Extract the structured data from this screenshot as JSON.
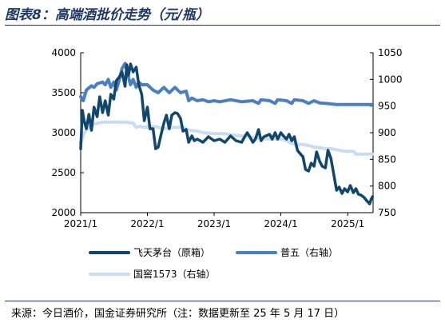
{
  "title": "图表8：高端酒批价走势（元/瓶）",
  "source": "来源：今日酒价，国金证券研究所（注：数据更新至 25 年 5 月 17 日）",
  "chart_data": {
    "type": "line",
    "title": "图表8：高端酒批价走势（元/瓶）",
    "x_ticks": [
      "2021/1",
      "2022/1",
      "2023/1",
      "2024/1",
      "2025/1"
    ],
    "x_range": [
      "2021-01",
      "2025-05"
    ],
    "y_left": {
      "min": 2000,
      "max": 4000,
      "ticks": [
        "2000",
        "2500",
        "3000",
        "3500",
        "4000"
      ]
    },
    "y_right": {
      "min": 750,
      "max": 1050,
      "ticks": [
        "750",
        "800",
        "850",
        "900",
        "950",
        "1000",
        "1050"
      ]
    },
    "legend_position": "bottom",
    "series": [
      {
        "name": "飞天茅台（原箱）",
        "axis": "left",
        "color": "#10476b",
        "points": [
          [
            "2021-01-01",
            2800
          ],
          [
            "2021-01-10",
            3280
          ],
          [
            "2021-01-20",
            3150
          ],
          [
            "2021-02-01",
            3050
          ],
          [
            "2021-02-15",
            3230
          ],
          [
            "2021-03-01",
            3030
          ],
          [
            "2021-03-15",
            3320
          ],
          [
            "2021-04-01",
            3200
          ],
          [
            "2021-04-15",
            3450
          ],
          [
            "2021-05-01",
            3250
          ],
          [
            "2021-05-15",
            3400
          ],
          [
            "2021-06-01",
            3220
          ],
          [
            "2021-06-15",
            3480
          ],
          [
            "2021-07-01",
            3420
          ],
          [
            "2021-07-15",
            3650
          ],
          [
            "2021-08-01",
            3700
          ],
          [
            "2021-08-15",
            3760
          ],
          [
            "2021-09-01",
            3580
          ],
          [
            "2021-09-10",
            3850
          ],
          [
            "2021-09-20",
            3720
          ],
          [
            "2021-10-01",
            3860
          ],
          [
            "2021-10-15",
            3760
          ],
          [
            "2021-11-01",
            3820
          ],
          [
            "2021-11-15",
            3600
          ],
          [
            "2021-12-01",
            3480
          ],
          [
            "2021-12-15",
            3150
          ],
          [
            "2022-01-01",
            3320
          ],
          [
            "2022-01-15",
            3050
          ],
          [
            "2022-02-01",
            3050
          ],
          [
            "2022-02-15",
            2800
          ],
          [
            "2022-03-01",
            2820
          ],
          [
            "2022-03-15",
            2960
          ],
          [
            "2022-04-01",
            3120
          ],
          [
            "2022-04-15",
            3220
          ],
          [
            "2022-05-01",
            3050
          ],
          [
            "2022-05-15",
            3220
          ],
          [
            "2022-06-01",
            3250
          ],
          [
            "2022-06-15",
            3240
          ],
          [
            "2022-07-01",
            3180
          ],
          [
            "2022-07-15",
            3020
          ],
          [
            "2022-08-01",
            3040
          ],
          [
            "2022-08-15",
            2880
          ],
          [
            "2022-09-01",
            2960
          ],
          [
            "2022-09-15",
            2900
          ],
          [
            "2022-10-01",
            2920
          ],
          [
            "2022-11-01",
            2880
          ],
          [
            "2022-12-01",
            2950
          ],
          [
            "2023-01-01",
            2900
          ],
          [
            "2023-02-01",
            2920
          ],
          [
            "2023-03-01",
            2880
          ],
          [
            "2023-04-01",
            2960
          ],
          [
            "2023-05-01",
            2900
          ],
          [
            "2023-06-01",
            2880
          ],
          [
            "2023-06-15",
            2940
          ],
          [
            "2023-07-01",
            3000
          ],
          [
            "2023-07-15",
            2950
          ],
          [
            "2023-08-01",
            2880
          ],
          [
            "2023-08-15",
            2920
          ],
          [
            "2023-09-01",
            3040
          ],
          [
            "2023-09-15",
            2900
          ],
          [
            "2023-10-01",
            2950
          ],
          [
            "2023-11-01",
            2980
          ],
          [
            "2023-11-15",
            2920
          ],
          [
            "2023-12-01",
            3000
          ],
          [
            "2023-12-15",
            2920
          ],
          [
            "2024-01-01",
            3000
          ],
          [
            "2024-01-15",
            2960
          ],
          [
            "2024-02-01",
            2920
          ],
          [
            "2024-02-15",
            2980
          ],
          [
            "2024-03-01",
            2900
          ],
          [
            "2024-03-15",
            2950
          ],
          [
            "2024-04-01",
            2780
          ],
          [
            "2024-04-15",
            2740
          ],
          [
            "2024-05-01",
            2700
          ],
          [
            "2024-05-15",
            2540
          ],
          [
            "2024-06-01",
            2520
          ],
          [
            "2024-06-15",
            2620
          ],
          [
            "2024-07-01",
            2580
          ],
          [
            "2024-07-15",
            2760
          ],
          [
            "2024-08-01",
            2640
          ],
          [
            "2024-08-15",
            2580
          ],
          [
            "2024-09-01",
            2560
          ],
          [
            "2024-09-15",
            2780
          ],
          [
            "2024-10-01",
            2680
          ],
          [
            "2024-10-15",
            2500
          ],
          [
            "2024-11-01",
            2280
          ],
          [
            "2024-11-15",
            2320
          ],
          [
            "2024-12-01",
            2240
          ],
          [
            "2024-12-15",
            2300
          ],
          [
            "2025-01-01",
            2260
          ],
          [
            "2025-01-15",
            2340
          ],
          [
            "2025-02-01",
            2250
          ],
          [
            "2025-02-15",
            2300
          ],
          [
            "2025-03-01",
            2230
          ],
          [
            "2025-03-15",
            2220
          ],
          [
            "2025-04-01",
            2190
          ],
          [
            "2025-04-15",
            2150
          ],
          [
            "2025-05-01",
            2110
          ],
          [
            "2025-05-10",
            2170
          ],
          [
            "2025-05-17",
            2200
          ]
        ]
      },
      {
        "name": "普五（右轴）",
        "axis": "right",
        "color": "#4a80bf",
        "points": [
          [
            "2021-01-01",
            968
          ],
          [
            "2021-01-15",
            960
          ],
          [
            "2021-02-01",
            980
          ],
          [
            "2021-03-01",
            988
          ],
          [
            "2021-03-15",
            985
          ],
          [
            "2021-04-01",
            992
          ],
          [
            "2021-05-01",
            995
          ],
          [
            "2021-05-15",
            990
          ],
          [
            "2021-06-01",
            1000
          ],
          [
            "2021-06-15",
            985
          ],
          [
            "2021-07-01",
            995
          ],
          [
            "2021-07-15",
            980
          ],
          [
            "2021-08-01",
            1000
          ],
          [
            "2021-08-15",
            1020
          ],
          [
            "2021-09-01",
            1030
          ],
          [
            "2021-09-15",
            1010
          ],
          [
            "2021-10-01",
            990
          ],
          [
            "2021-10-15",
            1000
          ],
          [
            "2021-11-01",
            985
          ],
          [
            "2021-11-15",
            995
          ],
          [
            "2021-12-01",
            990
          ],
          [
            "2022-01-01",
            990
          ],
          [
            "2022-02-01",
            980
          ],
          [
            "2022-03-01",
            975
          ],
          [
            "2022-04-01",
            985
          ],
          [
            "2022-05-01",
            975
          ],
          [
            "2022-06-01",
            985
          ],
          [
            "2022-07-01",
            975
          ],
          [
            "2022-08-01",
            978
          ],
          [
            "2022-08-15",
            960
          ],
          [
            "2022-09-01",
            965
          ],
          [
            "2022-10-01",
            960
          ],
          [
            "2022-11-01",
            962
          ],
          [
            "2022-12-01",
            958
          ],
          [
            "2023-01-01",
            960
          ],
          [
            "2023-02-01",
            958
          ],
          [
            "2023-04-01",
            962
          ],
          [
            "2023-06-01",
            958
          ],
          [
            "2023-08-01",
            960
          ],
          [
            "2023-09-01",
            955
          ],
          [
            "2023-09-15",
            962
          ],
          [
            "2023-11-01",
            960
          ],
          [
            "2023-12-01",
            955
          ],
          [
            "2023-12-15",
            962
          ],
          [
            "2024-02-01",
            960
          ],
          [
            "2024-03-01",
            955
          ],
          [
            "2024-03-15",
            962
          ],
          [
            "2024-05-01",
            960
          ],
          [
            "2024-06-01",
            955
          ],
          [
            "2024-07-01",
            960
          ],
          [
            "2024-08-01",
            956
          ],
          [
            "2024-09-01",
            955
          ],
          [
            "2024-11-01",
            953
          ],
          [
            "2025-01-01",
            953
          ],
          [
            "2025-03-01",
            953
          ],
          [
            "2025-05-17",
            953
          ]
        ]
      },
      {
        "name": "国窖1573（右轴）",
        "axis": "right",
        "color": "#c9dcf0",
        "points": [
          [
            "2021-01-01",
            880
          ],
          [
            "2021-01-20",
            900
          ],
          [
            "2021-03-01",
            915
          ],
          [
            "2021-05-01",
            920
          ],
          [
            "2021-07-01",
            920
          ],
          [
            "2021-09-01",
            920
          ],
          [
            "2021-10-15",
            918
          ],
          [
            "2021-11-01",
            910
          ],
          [
            "2021-11-20",
            912
          ],
          [
            "2021-12-15",
            910
          ],
          [
            "2022-02-01",
            912
          ],
          [
            "2022-04-01",
            908
          ],
          [
            "2022-06-01",
            910
          ],
          [
            "2022-07-15",
            910
          ],
          [
            "2022-08-15",
            905
          ],
          [
            "2022-10-01",
            903
          ],
          [
            "2022-11-01",
            900
          ],
          [
            "2023-01-01",
            898
          ],
          [
            "2023-03-01",
            898
          ],
          [
            "2023-05-01",
            895
          ],
          [
            "2023-07-01",
            893
          ],
          [
            "2023-09-01",
            890
          ],
          [
            "2023-11-01",
            888
          ],
          [
            "2024-01-01",
            888
          ],
          [
            "2024-02-01",
            885
          ],
          [
            "2024-03-01",
            880
          ],
          [
            "2024-04-01",
            878
          ],
          [
            "2024-05-01",
            878
          ],
          [
            "2024-06-01",
            876
          ],
          [
            "2024-07-01",
            873
          ],
          [
            "2024-08-01",
            872
          ],
          [
            "2024-09-01",
            870
          ],
          [
            "2024-10-01",
            870
          ],
          [
            "2024-11-01",
            868
          ],
          [
            "2024-12-01",
            866
          ],
          [
            "2025-01-01",
            865
          ],
          [
            "2025-02-01",
            865
          ],
          [
            "2025-02-15",
            860
          ],
          [
            "2025-04-01",
            860
          ],
          [
            "2025-05-17",
            860
          ]
        ]
      }
    ]
  }
}
